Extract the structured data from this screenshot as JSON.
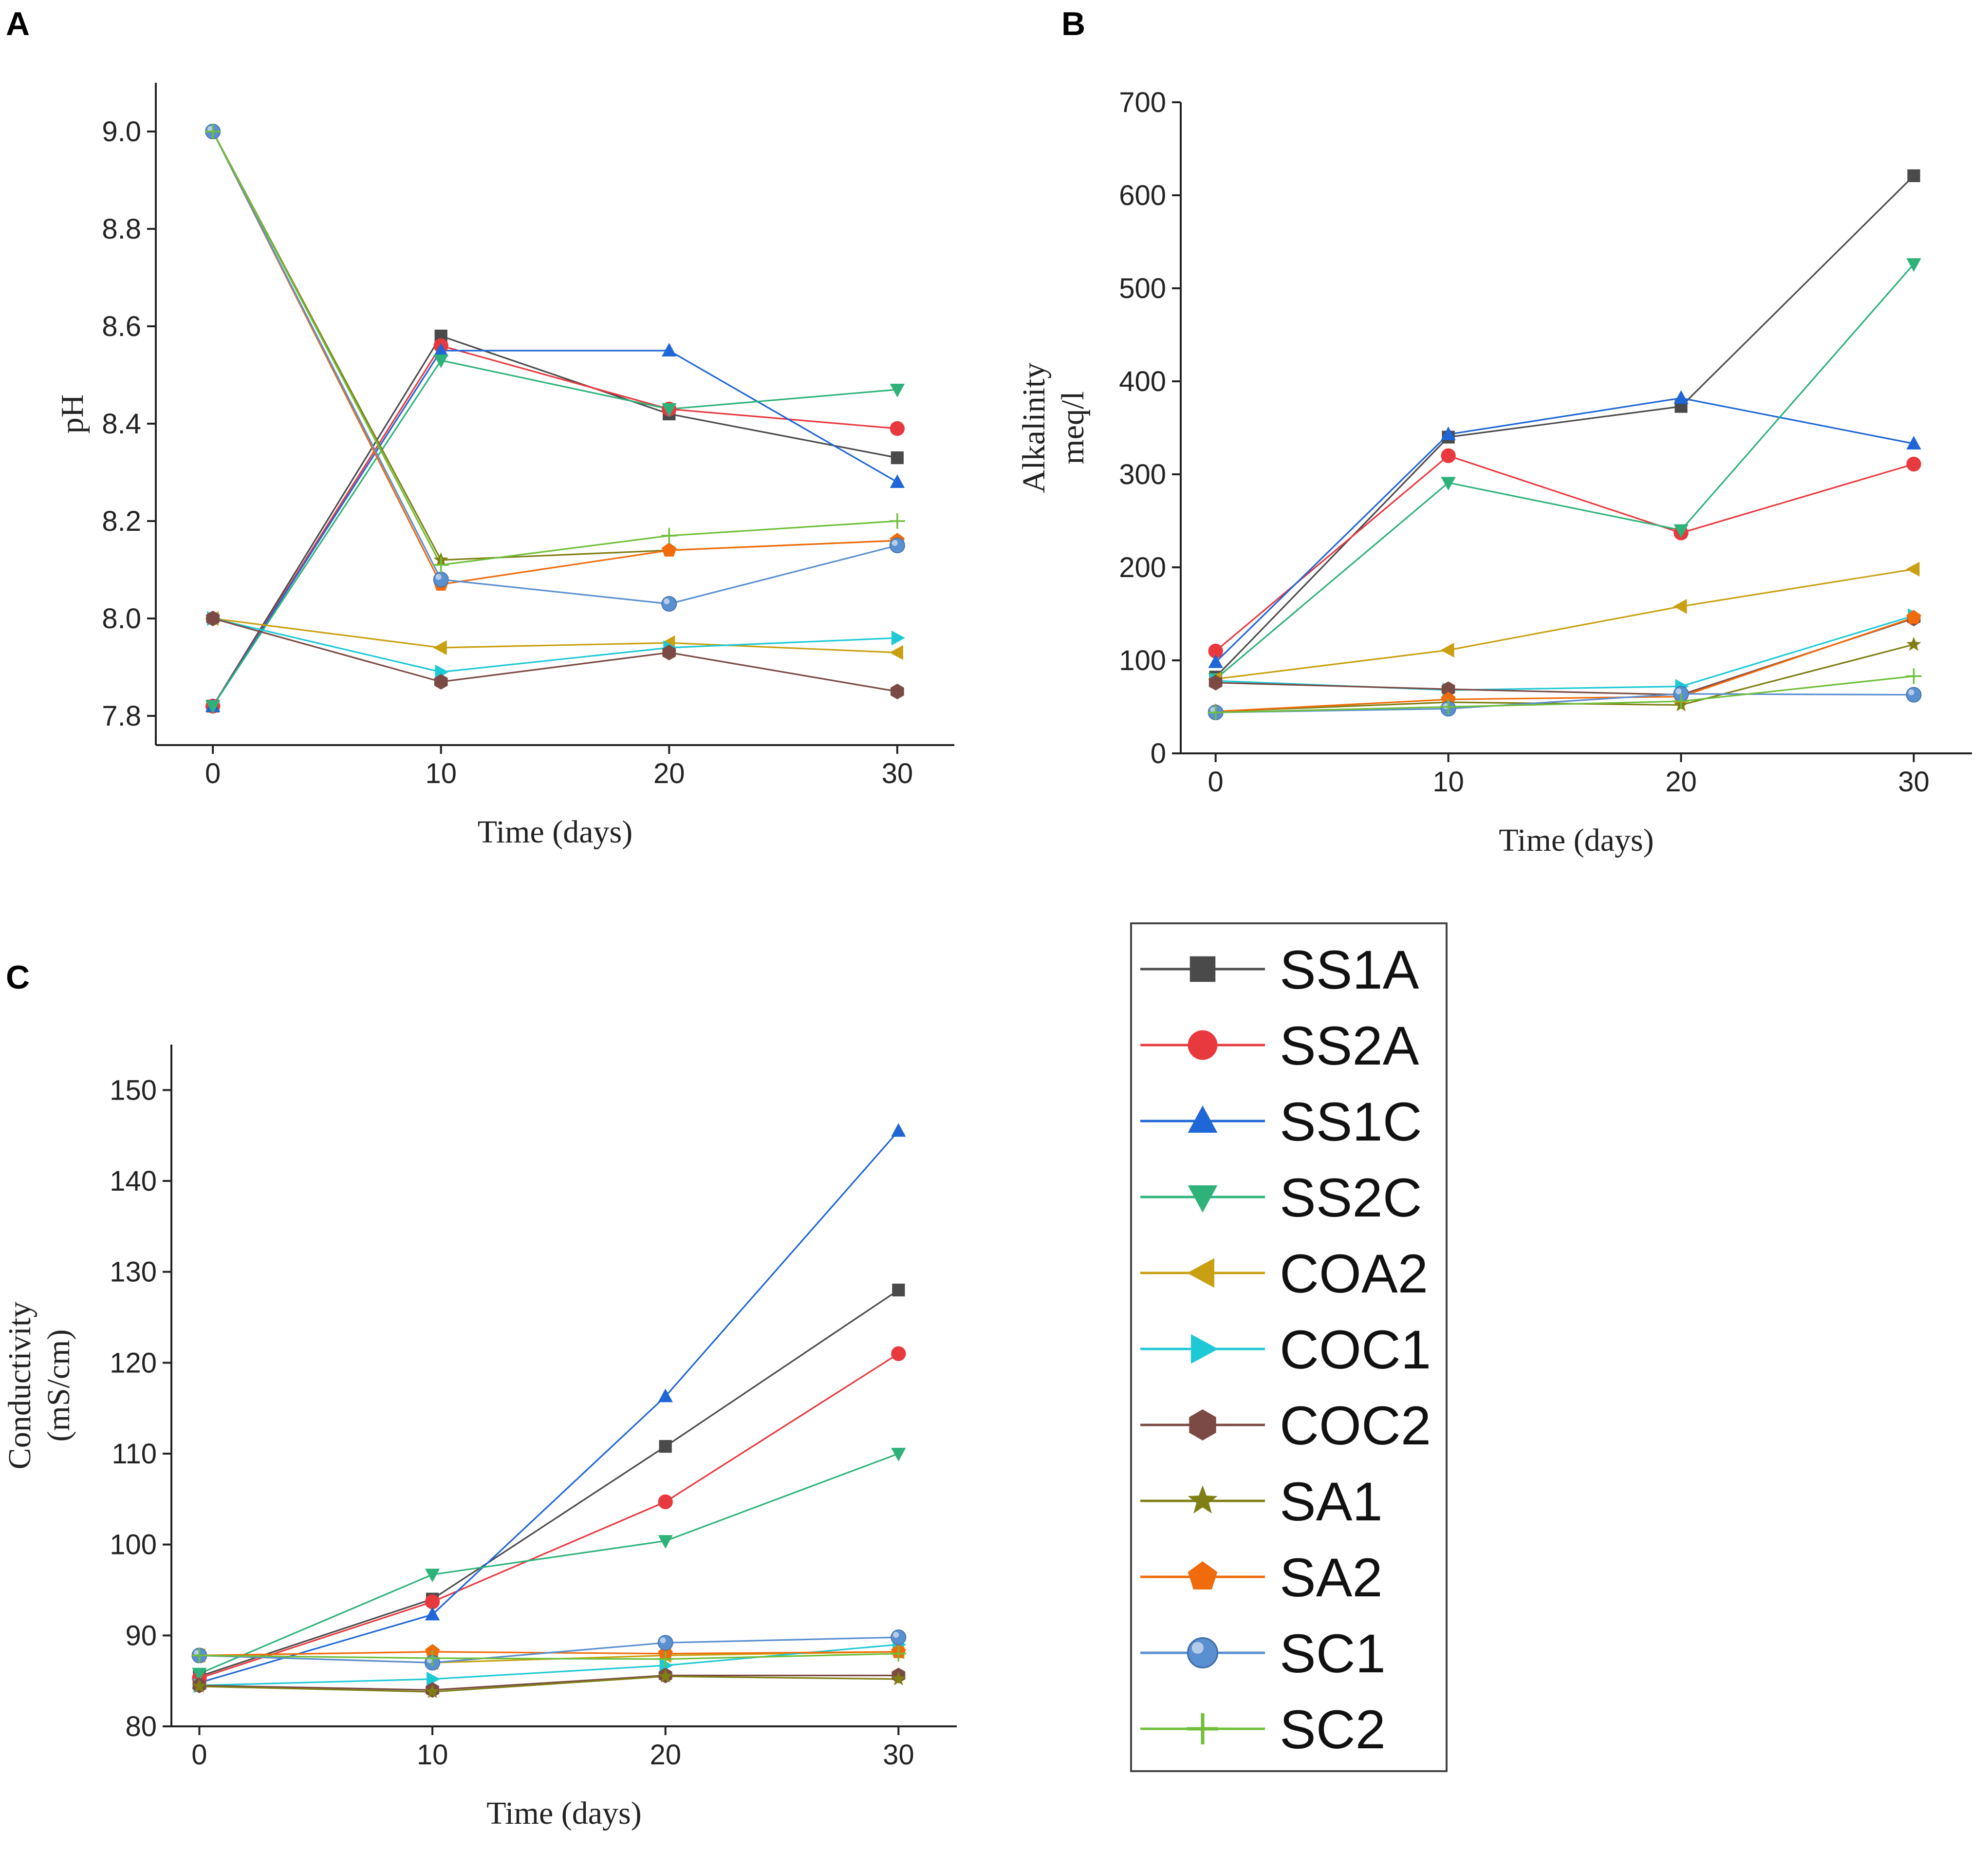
{
  "figure": {
    "panel_labels": [
      "A",
      "B",
      "C"
    ]
  },
  "legend": {
    "entries": [
      {
        "name": "SS1A",
        "color": "#4a4a4a",
        "marker": "square"
      },
      {
        "name": "SS2A",
        "color": "#e8393f",
        "marker": "circle"
      },
      {
        "name": "SS1C",
        "color": "#1f66d6",
        "marker": "triangle-up"
      },
      {
        "name": "SS2C",
        "color": "#2fb27a",
        "marker": "triangle-down"
      },
      {
        "name": "COA2",
        "color": "#c9a012",
        "marker": "triangle-left"
      },
      {
        "name": "COC1",
        "color": "#1ec9d6",
        "marker": "triangle-right"
      },
      {
        "name": "COC2",
        "color": "#7b4a44",
        "marker": "hexagon"
      },
      {
        "name": "SA1",
        "color": "#7f7f14",
        "marker": "star"
      },
      {
        "name": "SA2",
        "color": "#f06b0c",
        "marker": "pentagon"
      },
      {
        "name": "SC1",
        "color": "#5a8fd0",
        "marker": "sphere"
      },
      {
        "name": "SC2",
        "color": "#6fbf3a",
        "marker": "plus"
      }
    ]
  },
  "chart_data": [
    {
      "panel": "A",
      "type": "line",
      "xlabel": "Time (days)",
      "ylabel": "pH",
      "x": [
        0,
        10,
        20,
        30
      ],
      "xticks": [
        "0",
        "10",
        "20",
        "30"
      ],
      "xlim": [
        -2.5,
        32.5
      ],
      "ylim": [
        7.74,
        9.1
      ],
      "yticks": [
        "7.8",
        "8.0",
        "8.2",
        "8.4",
        "8.6",
        "8.8",
        "9.0"
      ],
      "series": [
        {
          "name": "SS1A",
          "values": [
            7.82,
            8.58,
            8.42,
            8.33
          ]
        },
        {
          "name": "SS2A",
          "values": [
            7.82,
            8.56,
            8.43,
            8.39
          ]
        },
        {
          "name": "SS1C",
          "values": [
            7.82,
            8.55,
            8.55,
            8.28
          ]
        },
        {
          "name": "SS2C",
          "values": [
            7.82,
            8.53,
            8.43,
            8.47
          ]
        },
        {
          "name": "COA2",
          "values": [
            8.0,
            7.94,
            7.95,
            7.93
          ]
        },
        {
          "name": "COC1",
          "values": [
            8.0,
            7.89,
            7.94,
            7.96
          ]
        },
        {
          "name": "COC2",
          "values": [
            8.0,
            7.87,
            7.93,
            7.85
          ]
        },
        {
          "name": "SA1",
          "values": [
            9.0,
            8.12,
            8.14,
            8.16
          ]
        },
        {
          "name": "SA2",
          "values": [
            9.0,
            8.07,
            8.14,
            8.16
          ]
        },
        {
          "name": "SC1",
          "values": [
            9.0,
            8.08,
            8.03,
            8.15
          ]
        },
        {
          "name": "SC2",
          "values": [
            9.0,
            8.11,
            8.17,
            8.2
          ]
        }
      ]
    },
    {
      "panel": "B",
      "type": "line",
      "xlabel": "Time (days)",
      "ylabel": "Alkalinity",
      "ylabel2": "meq/l",
      "x": [
        0,
        10,
        20,
        30
      ],
      "xticks": [
        "0",
        "10",
        "20",
        "30"
      ],
      "xlim": [
        -1.5,
        32.5
      ],
      "ylim": [
        0,
        700
      ],
      "yticks": [
        "0",
        "100",
        "200",
        "300",
        "400",
        "500",
        "600",
        "700"
      ],
      "series": [
        {
          "name": "SS1A",
          "values": [
            82,
            340,
            373,
            621
          ]
        },
        {
          "name": "SS2A",
          "values": [
            110,
            320,
            237,
            311
          ]
        },
        {
          "name": "SS1C",
          "values": [
            98,
            343,
            382,
            333
          ]
        },
        {
          "name": "SS2C",
          "values": [
            80,
            291,
            240,
            526
          ]
        },
        {
          "name": "COA2",
          "values": [
            80,
            111,
            158,
            198
          ]
        },
        {
          "name": "COC1",
          "values": [
            78,
            68,
            72,
            148
          ]
        },
        {
          "name": "COC2",
          "values": [
            76,
            69,
            63,
            145
          ]
        },
        {
          "name": "SA1",
          "values": [
            45,
            55,
            52,
            117
          ]
        },
        {
          "name": "SA2",
          "values": [
            45,
            58,
            61,
            146
          ]
        },
        {
          "name": "SC1",
          "values": [
            44,
            48,
            64,
            63
          ]
        },
        {
          "name": "SC2",
          "values": [
            44,
            50,
            56,
            83
          ]
        }
      ]
    },
    {
      "panel": "C",
      "type": "line",
      "xlabel": "Time (days)",
      "ylabel": "Conductivity",
      "ylabel2": "(mS/cm)",
      "x": [
        0,
        10,
        20,
        30
      ],
      "xticks": [
        "0",
        "10",
        "20",
        "30"
      ],
      "xlim": [
        -1.2,
        32.5
      ],
      "ylim": [
        80,
        155
      ],
      "yticks": [
        "80",
        "90",
        "100",
        "110",
        "120",
        "130",
        "140",
        "150"
      ],
      "series": [
        {
          "name": "SS1A",
          "values": [
            85.5,
            94.0,
            110.8,
            128.0
          ]
        },
        {
          "name": "SS2A",
          "values": [
            85.3,
            93.7,
            104.7,
            121.0
          ]
        },
        {
          "name": "SS1C",
          "values": [
            84.8,
            92.3,
            116.3,
            145.5
          ]
        },
        {
          "name": "SS2C",
          "values": [
            85.8,
            96.7,
            100.4,
            110.0
          ]
        },
        {
          "name": "COA2",
          "values": [
            87.8,
            87.0,
            87.8,
            88.2
          ]
        },
        {
          "name": "COC1",
          "values": [
            84.5,
            85.2,
            86.7,
            89.0
          ]
        },
        {
          "name": "COC2",
          "values": [
            84.5,
            84.0,
            85.6,
            85.6
          ]
        },
        {
          "name": "SA1",
          "values": [
            84.4,
            83.8,
            85.5,
            85.2
          ]
        },
        {
          "name": "SA2",
          "values": [
            87.8,
            88.2,
            88.0,
            88.2
          ]
        },
        {
          "name": "SC1",
          "values": [
            87.8,
            87.0,
            89.2,
            89.8
          ]
        },
        {
          "name": "SC2",
          "values": [
            87.8,
            87.5,
            87.4,
            88.0
          ]
        }
      ]
    }
  ]
}
